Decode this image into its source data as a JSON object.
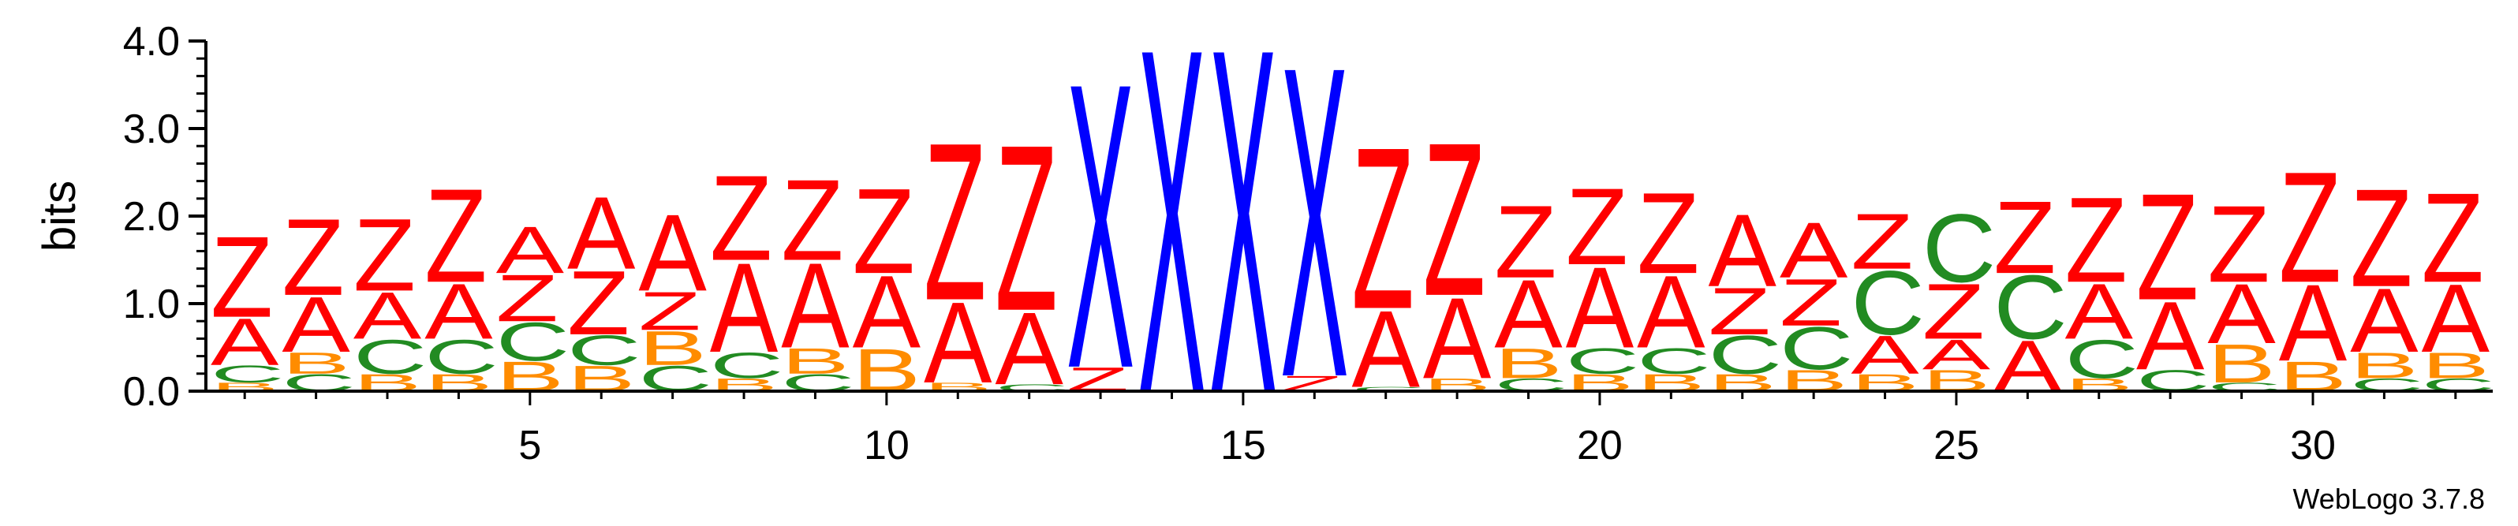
{
  "chart_data": {
    "type": "sequence-logo",
    "ylabel": "bits",
    "ylim": [
      0,
      4.0
    ],
    "yticks": [
      "0.0",
      "1.0",
      "2.0",
      "3.0",
      "4.0"
    ],
    "xticks": [
      "5",
      "10",
      "15",
      "20",
      "25",
      "30"
    ],
    "xticks_values": [
      5,
      10,
      15,
      20,
      25,
      30
    ],
    "positions": 32,
    "credit": "WebLogo 3.7.8",
    "colors": {
      "Z": "#ff0000",
      "A": "#ff0000",
      "B": "#ff8c00",
      "C": "#228b22",
      "X": "#0000ff"
    },
    "columns": [
      {
        "pos": 1,
        "stack": [
          [
            "B",
            0.1
          ],
          [
            "C",
            0.2
          ],
          [
            "A",
            0.55
          ],
          [
            "Z",
            0.95
          ]
        ]
      },
      {
        "pos": 2,
        "stack": [
          [
            "C",
            0.2
          ],
          [
            "B",
            0.25
          ],
          [
            "A",
            0.65
          ],
          [
            "Z",
            0.9
          ]
        ]
      },
      {
        "pos": 3,
        "stack": [
          [
            "B",
            0.2
          ],
          [
            "C",
            0.4
          ],
          [
            "A",
            0.55
          ],
          [
            "Z",
            0.85
          ]
        ]
      },
      {
        "pos": 4,
        "stack": [
          [
            "B",
            0.2
          ],
          [
            "C",
            0.4
          ],
          [
            "A",
            0.65
          ],
          [
            "Z",
            1.1
          ]
        ]
      },
      {
        "pos": 5,
        "stack": [
          [
            "B",
            0.35
          ],
          [
            "C",
            0.45
          ],
          [
            "Z",
            0.55
          ],
          [
            "A",
            0.55
          ]
        ]
      },
      {
        "pos": 6,
        "stack": [
          [
            "B",
            0.3
          ],
          [
            "C",
            0.35
          ],
          [
            "Z",
            0.75
          ],
          [
            "A",
            0.85
          ]
        ]
      },
      {
        "pos": 7,
        "stack": [
          [
            "C",
            0.3
          ],
          [
            "B",
            0.4
          ],
          [
            "Z",
            0.45
          ],
          [
            "A",
            0.9
          ]
        ]
      },
      {
        "pos": 8,
        "stack": [
          [
            "B",
            0.15
          ],
          [
            "C",
            0.3
          ],
          [
            "A",
            1.05
          ],
          [
            "Z",
            1.0
          ]
        ]
      },
      {
        "pos": 9,
        "stack": [
          [
            "C",
            0.2
          ],
          [
            "B",
            0.3
          ],
          [
            "A",
            1.0
          ],
          [
            "Z",
            0.95
          ]
        ]
      },
      {
        "pos": 10,
        "stack": [
          [
            "B",
            0.5
          ],
          [
            "A",
            0.85
          ],
          [
            "Z",
            1.0
          ]
        ]
      },
      {
        "pos": 11,
        "stack": [
          [
            "B",
            0.1
          ],
          [
            "A",
            0.95
          ],
          [
            "Z",
            1.85
          ]
        ]
      },
      {
        "pos": 12,
        "stack": [
          [
            "C",
            0.08
          ],
          [
            "A",
            0.85
          ],
          [
            "Z",
            1.95
          ]
        ]
      },
      {
        "pos": 13,
        "stack": [
          [
            "Z",
            0.28
          ],
          [
            "X",
            3.35
          ]
        ]
      },
      {
        "pos": 14,
        "stack": [
          [
            "X",
            4.05
          ]
        ]
      },
      {
        "pos": 15,
        "stack": [
          [
            "X",
            4.05
          ]
        ]
      },
      {
        "pos": 16,
        "stack": [
          [
            "Z",
            0.18
          ],
          [
            "X",
            3.65
          ]
        ]
      },
      {
        "pos": 17,
        "stack": [
          [
            "C",
            0.05
          ],
          [
            "A",
            0.9
          ],
          [
            "Z",
            1.9
          ]
        ]
      },
      {
        "pos": 18,
        "stack": [
          [
            "B",
            0.15
          ],
          [
            "A",
            0.95
          ],
          [
            "Z",
            1.8
          ]
        ]
      },
      {
        "pos": 19,
        "stack": [
          [
            "C",
            0.15
          ],
          [
            "B",
            0.35
          ],
          [
            "A",
            0.8
          ],
          [
            "Z",
            0.85
          ]
        ]
      },
      {
        "pos": 20,
        "stack": [
          [
            "B",
            0.2
          ],
          [
            "C",
            0.3
          ],
          [
            "A",
            0.95
          ],
          [
            "Z",
            0.9
          ]
        ]
      },
      {
        "pos": 21,
        "stack": [
          [
            "B",
            0.2
          ],
          [
            "C",
            0.3
          ],
          [
            "A",
            0.85
          ],
          [
            "Z",
            0.95
          ]
        ]
      },
      {
        "pos": 22,
        "stack": [
          [
            "B",
            0.2
          ],
          [
            "C",
            0.45
          ],
          [
            "Z",
            0.55
          ],
          [
            "A",
            0.85
          ]
        ]
      },
      {
        "pos": 23,
        "stack": [
          [
            "B",
            0.25
          ],
          [
            "C",
            0.5
          ],
          [
            "Z",
            0.55
          ],
          [
            "A",
            0.65
          ]
        ]
      },
      {
        "pos": 24,
        "stack": [
          [
            "B",
            0.2
          ],
          [
            "A",
            0.45
          ],
          [
            "C",
            0.75
          ],
          [
            "Z",
            0.65
          ]
        ]
      },
      {
        "pos": 25,
        "stack": [
          [
            "B",
            0.25
          ],
          [
            "A",
            0.35
          ],
          [
            "Z",
            0.65
          ],
          [
            "C",
            0.8
          ]
        ]
      },
      {
        "pos": 26,
        "stack": [
          [
            "A",
            0.6
          ],
          [
            "C",
            0.75
          ],
          [
            "Z",
            0.85
          ]
        ]
      },
      {
        "pos": 27,
        "stack": [
          [
            "B",
            0.15
          ],
          [
            "C",
            0.45
          ],
          [
            "A",
            0.65
          ],
          [
            "Z",
            1.0
          ]
        ]
      },
      {
        "pos": 28,
        "stack": [
          [
            "C",
            0.25
          ],
          [
            "A",
            0.8
          ],
          [
            "Z",
            1.25
          ]
        ]
      },
      {
        "pos": 29,
        "stack": [
          [
            "C",
            0.1
          ],
          [
            "B",
            0.45
          ],
          [
            "A",
            0.7
          ],
          [
            "Z",
            0.9
          ]
        ]
      },
      {
        "pos": 30,
        "stack": [
          [
            "B",
            0.35
          ],
          [
            "A",
            0.9
          ],
          [
            "Z",
            1.3
          ]
        ]
      },
      {
        "pos": 31,
        "stack": [
          [
            "C",
            0.15
          ],
          [
            "B",
            0.3
          ],
          [
            "A",
            0.75
          ],
          [
            "Z",
            1.15
          ]
        ]
      },
      {
        "pos": 32,
        "stack": [
          [
            "C",
            0.15
          ],
          [
            "B",
            0.3
          ],
          [
            "A",
            0.8
          ],
          [
            "Z",
            1.05
          ]
        ]
      }
    ]
  }
}
